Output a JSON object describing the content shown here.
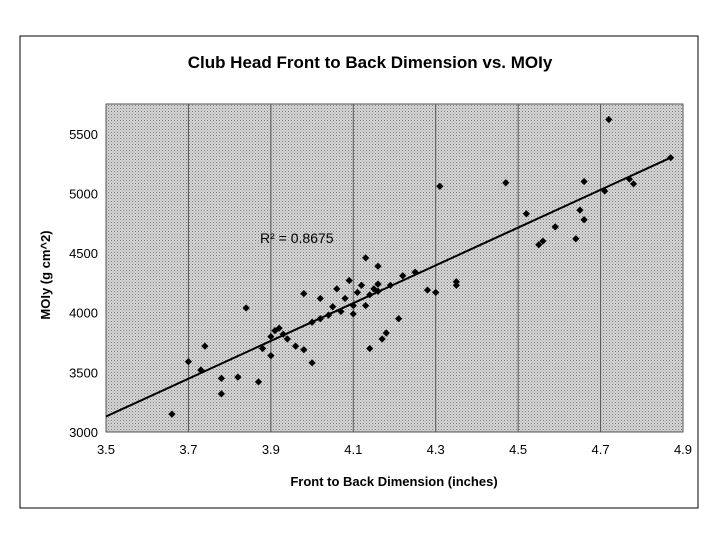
{
  "chart_data": {
    "type": "scatter",
    "title": "Club Head Front to Back Dimension vs. MOIy",
    "xlabel": "Front to Back Dimension (inches)",
    "ylabel": "MOIy (g cm^2)",
    "xlim": [
      3.5,
      4.9
    ],
    "ylim": [
      3000,
      5750
    ],
    "xticks": [
      "3.5",
      "3.7",
      "3.9",
      "4.1",
      "4.3",
      "4.5",
      "4.7",
      "4.9"
    ],
    "yticks": [
      "3000",
      "3500",
      "4000",
      "4500",
      "5000",
      "5500"
    ],
    "xtick_values": [
      3.5,
      3.7,
      3.9,
      4.1,
      4.3,
      4.5,
      4.7,
      4.9
    ],
    "ytick_values": [
      3000,
      3500,
      4000,
      4500,
      5000,
      5500
    ],
    "grid": "vertical",
    "annotation": "R² = 0.8675",
    "trendline": {
      "x": [
        3.5,
        4.87
      ],
      "y": [
        3130,
        5300
      ]
    },
    "points": [
      [
        3.66,
        3150
      ],
      [
        3.7,
        3590
      ],
      [
        3.74,
        3720
      ],
      [
        3.73,
        3520
      ],
      [
        3.78,
        3450
      ],
      [
        3.78,
        3320
      ],
      [
        3.82,
        3460
      ],
      [
        3.84,
        4040
      ],
      [
        3.87,
        3420
      ],
      [
        3.88,
        3700
      ],
      [
        3.9,
        3800
      ],
      [
        3.9,
        3640
      ],
      [
        3.91,
        3850
      ],
      [
        3.92,
        3870
      ],
      [
        3.93,
        3820
      ],
      [
        3.94,
        3780
      ],
      [
        3.96,
        3720
      ],
      [
        3.98,
        3690
      ],
      [
        3.98,
        4160
      ],
      [
        4.0,
        3920
      ],
      [
        4.0,
        3580
      ],
      [
        4.02,
        3950
      ],
      [
        4.02,
        4120
      ],
      [
        4.04,
        3980
      ],
      [
        4.05,
        4050
      ],
      [
        4.06,
        4200
      ],
      [
        4.07,
        4010
      ],
      [
        4.08,
        4120
      ],
      [
        4.09,
        4270
      ],
      [
        4.1,
        4060
      ],
      [
        4.1,
        3990
      ],
      [
        4.11,
        4170
      ],
      [
        4.12,
        4230
      ],
      [
        4.13,
        4060
      ],
      [
        4.13,
        4460
      ],
      [
        4.14,
        4150
      ],
      [
        4.14,
        3700
      ],
      [
        4.15,
        4200
      ],
      [
        4.16,
        4390
      ],
      [
        4.16,
        4240
      ],
      [
        4.16,
        4180
      ],
      [
        4.17,
        3780
      ],
      [
        4.18,
        3830
      ],
      [
        4.19,
        4230
      ],
      [
        4.21,
        3950
      ],
      [
        4.22,
        4310
      ],
      [
        4.25,
        4340
      ],
      [
        4.28,
        4190
      ],
      [
        4.3,
        4170
      ],
      [
        4.31,
        5060
      ],
      [
        4.35,
        4260
      ],
      [
        4.35,
        4230
      ],
      [
        4.47,
        5090
      ],
      [
        4.52,
        4830
      ],
      [
        4.55,
        4570
      ],
      [
        4.56,
        4600
      ],
      [
        4.59,
        4720
      ],
      [
        4.64,
        4620
      ],
      [
        4.65,
        4860
      ],
      [
        4.66,
        5100
      ],
      [
        4.66,
        4780
      ],
      [
        4.71,
        5020
      ],
      [
        4.72,
        5620
      ],
      [
        4.77,
        5120
      ],
      [
        4.78,
        5080
      ],
      [
        4.87,
        5300
      ]
    ]
  }
}
